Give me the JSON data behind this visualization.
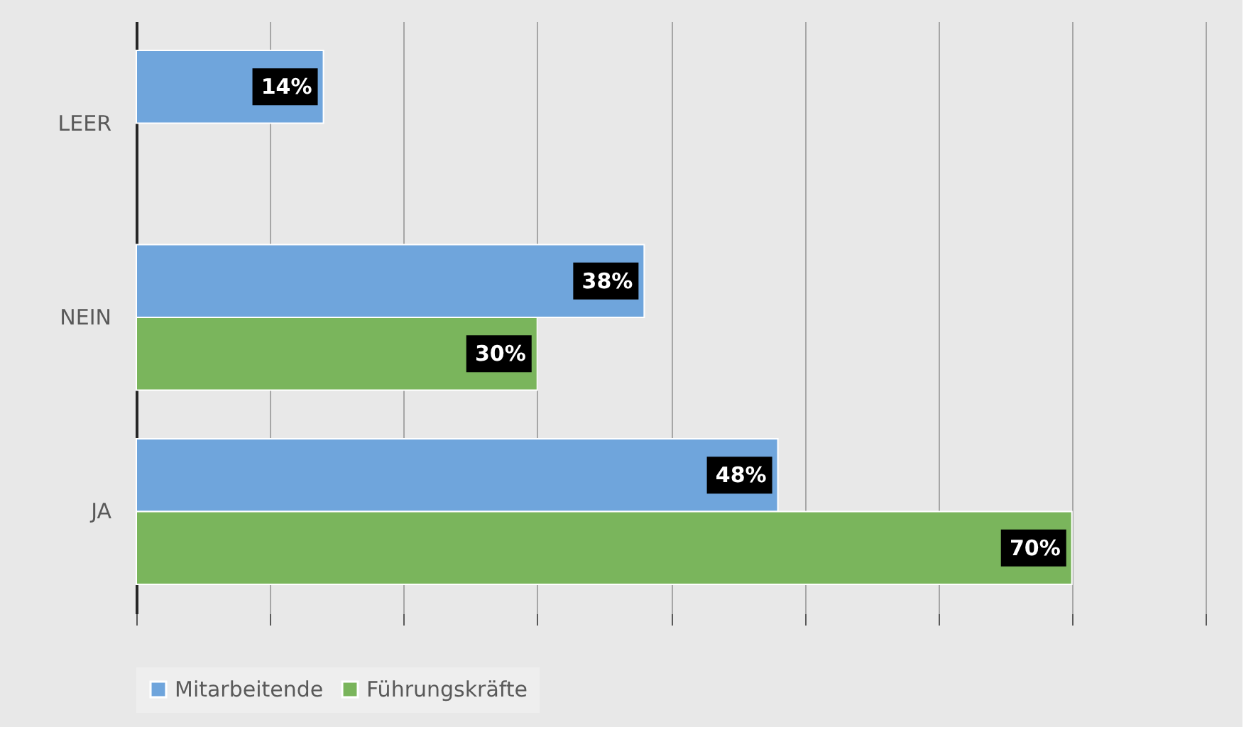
{
  "chart_data": {
    "type": "bar",
    "orientation": "horizontal",
    "categories": [
      "LEER",
      "NEIN",
      "JA"
    ],
    "series": [
      {
        "name": "Mitarbeitende",
        "color": "#6fa5dc",
        "values": [
          14,
          38,
          48
        ],
        "value_labels": [
          "14%",
          "38%",
          "48%"
        ]
      },
      {
        "name": "Führungskräfte",
        "color": "#7ab55c",
        "values": [
          null,
          30,
          70
        ],
        "value_labels": [
          null,
          "30%",
          "70%"
        ]
      }
    ],
    "xlim": [
      0,
      80
    ],
    "xticks": [
      {
        "value": 0,
        "label": null
      },
      {
        "value": 10,
        "label": null
      },
      {
        "value": 20,
        "label": null
      },
      {
        "value": 30,
        "label": null
      },
      {
        "value": 40,
        "label": null
      },
      {
        "value": 50,
        "label": null
      },
      {
        "value": 60,
        "label": null
      },
      {
        "value": 70,
        "label": null
      },
      {
        "value": 80,
        "label": null
      }
    ],
    "grid": "x",
    "legend": "bottom"
  }
}
